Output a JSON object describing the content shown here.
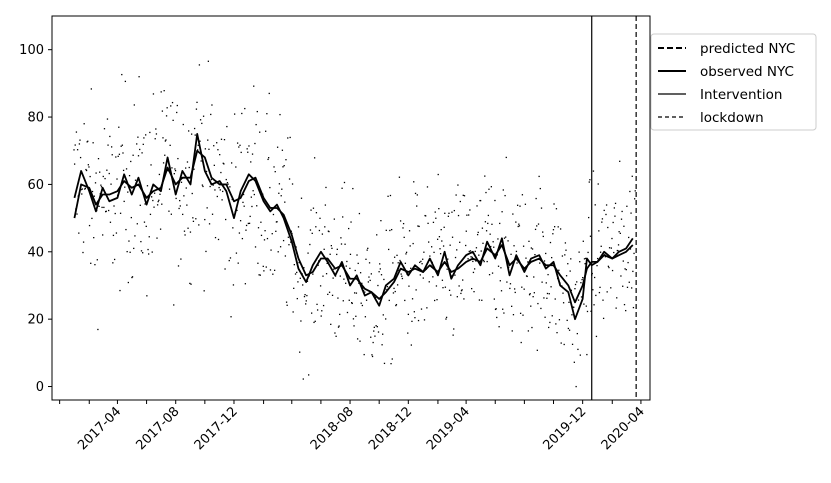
{
  "chart_data": {
    "type": "line",
    "title": "",
    "xlabel": "",
    "ylabel": "",
    "x_range": [
      "2016-11-15",
      "2020-04-20"
    ],
    "ylim": [
      -4,
      110
    ],
    "grid": false,
    "legend_placement": "upper-right-outside",
    "y_ticks": [
      0,
      20,
      40,
      60,
      80,
      100
    ],
    "y_tick_labels": [
      "0",
      "20",
      "40",
      "60",
      "80",
      "100"
    ],
    "x_tick_dates": [
      "2016-12-01",
      "2017-02-01",
      "2017-04-01",
      "2017-06-01",
      "2017-08-01",
      "2017-10-01",
      "2017-12-01",
      "2018-02-01",
      "2018-04-01",
      "2018-06-01",
      "2018-08-01",
      "2018-10-01",
      "2018-12-01",
      "2019-02-01",
      "2019-04-01",
      "2019-06-01",
      "2019-08-01",
      "2019-10-01",
      "2019-12-01",
      "2020-02-01",
      "2020-04-01"
    ],
    "x_tick_labels": [
      "",
      "",
      "2017-04",
      "",
      "2017-08",
      "",
      "2017-12",
      "",
      "",
      "",
      "2018-08",
      "",
      "2018-12",
      "",
      "2019-04",
      "",
      "",
      "",
      "2019-12",
      "",
      "2020-04"
    ],
    "legend": [
      {
        "label": "predicted NYC",
        "style": "dashed-thick"
      },
      {
        "label": "observed NYC",
        "style": "solid-thick"
      },
      {
        "label": "Intervention",
        "style": "solid-thin"
      },
      {
        "label": "lockdown",
        "style": "dashed-thin"
      }
    ],
    "colors": {
      "line": "#000000",
      "scatter": "#000000"
    },
    "series": [
      {
        "name": "observed NYC",
        "x": [
          "2017-01-01",
          "2017-01-15",
          "2017-02-01",
          "2017-02-15",
          "2017-03-01",
          "2017-03-15",
          "2017-04-01",
          "2017-04-15",
          "2017-05-01",
          "2017-05-15",
          "2017-06-01",
          "2017-06-15",
          "2017-07-01",
          "2017-07-15",
          "2017-08-01",
          "2017-08-15",
          "2017-09-01",
          "2017-09-15",
          "2017-10-01",
          "2017-10-15",
          "2017-11-01",
          "2017-11-15",
          "2017-12-01",
          "2017-12-15",
          "2018-01-01",
          "2018-01-15",
          "2018-02-01",
          "2018-02-15",
          "2018-03-01",
          "2018-03-15",
          "2018-04-01",
          "2018-04-15",
          "2018-05-01",
          "2018-05-15",
          "2018-06-01",
          "2018-06-15",
          "2018-07-01",
          "2018-07-15",
          "2018-08-01",
          "2018-08-15",
          "2018-09-01",
          "2018-09-15",
          "2018-10-01",
          "2018-10-15",
          "2018-11-01",
          "2018-11-15",
          "2018-12-01",
          "2018-12-15",
          "2019-01-01",
          "2019-01-15",
          "2019-02-01",
          "2019-02-15",
          "2019-03-01",
          "2019-03-15",
          "2019-04-01",
          "2019-04-15",
          "2019-05-01",
          "2019-05-15",
          "2019-06-01",
          "2019-06-15",
          "2019-07-01",
          "2019-07-15",
          "2019-08-01",
          "2019-08-15",
          "2019-09-01",
          "2019-09-15",
          "2019-10-01",
          "2019-10-15",
          "2019-11-01",
          "2019-11-15",
          "2019-12-01",
          "2019-12-10",
          "2019-12-20",
          "2020-01-01",
          "2020-01-15",
          "2020-02-01",
          "2020-02-15",
          "2020-03-01",
          "2020-03-15"
        ],
        "y": [
          56,
          64,
          58,
          52,
          59,
          55,
          56,
          63,
          57,
          62,
          54,
          60,
          58,
          68,
          57,
          64,
          60,
          75,
          64,
          60,
          61,
          58,
          50,
          58,
          63,
          61,
          55,
          52,
          54,
          50,
          43,
          35,
          31,
          36,
          40,
          37,
          33,
          37,
          30,
          33,
          27,
          28,
          24,
          30,
          32,
          37,
          33,
          36,
          34,
          38,
          33,
          40,
          32,
          36,
          39,
          40,
          36,
          43,
          38,
          44,
          33,
          39,
          34,
          38,
          39,
          35,
          37,
          30,
          28,
          20,
          26,
          38,
          36,
          37,
          40,
          38,
          40,
          41,
          44
        ]
      },
      {
        "name": "predicted NYC",
        "x": [
          "2017-01-01",
          "2017-01-15",
          "2017-02-01",
          "2017-02-15",
          "2017-03-01",
          "2017-03-15",
          "2017-04-01",
          "2017-04-15",
          "2017-05-01",
          "2017-05-15",
          "2017-06-01",
          "2017-06-15",
          "2017-07-01",
          "2017-07-15",
          "2017-08-01",
          "2017-08-15",
          "2017-09-01",
          "2017-09-15",
          "2017-10-01",
          "2017-10-15",
          "2017-11-01",
          "2017-11-15",
          "2017-12-01",
          "2017-12-15",
          "2018-01-01",
          "2018-01-15",
          "2018-02-01",
          "2018-02-15",
          "2018-03-01",
          "2018-03-15",
          "2018-04-01",
          "2018-04-15",
          "2018-05-01",
          "2018-05-15",
          "2018-06-01",
          "2018-06-15",
          "2018-07-01",
          "2018-07-15",
          "2018-08-01",
          "2018-08-15",
          "2018-09-01",
          "2018-09-15",
          "2018-10-01",
          "2018-10-15",
          "2018-11-01",
          "2018-11-15",
          "2018-12-01",
          "2018-12-15",
          "2019-01-01",
          "2019-01-15",
          "2019-02-01",
          "2019-02-15",
          "2019-03-01",
          "2019-03-15",
          "2019-04-01",
          "2019-04-15",
          "2019-05-01",
          "2019-05-15",
          "2019-06-01",
          "2019-06-15",
          "2019-07-01",
          "2019-07-15",
          "2019-08-01",
          "2019-08-15",
          "2019-09-01",
          "2019-09-15",
          "2019-10-01",
          "2019-10-15",
          "2019-11-01",
          "2019-11-15",
          "2019-12-01",
          "2019-12-10",
          "2019-12-20",
          "2020-01-01",
          "2020-01-15",
          "2020-02-01",
          "2020-02-15",
          "2020-03-01",
          "2020-03-15"
        ],
        "y": [
          50,
          60,
          59,
          54,
          57,
          57,
          58,
          61,
          59,
          60,
          56,
          58,
          59,
          65,
          60,
          62,
          62,
          70,
          68,
          62,
          60,
          60,
          55,
          56,
          61,
          62,
          56,
          53,
          53,
          51,
          45,
          38,
          33,
          34,
          38,
          38,
          35,
          36,
          32,
          32,
          29,
          28,
          26,
          28,
          31,
          35,
          34,
          35,
          34,
          36,
          34,
          37,
          34,
          35,
          37,
          38,
          37,
          41,
          39,
          42,
          36,
          38,
          35,
          37,
          38,
          36,
          36,
          33,
          30,
          25,
          30,
          35,
          37,
          37,
          39,
          38,
          39,
          40,
          42
        ]
      }
    ],
    "scatter_y_range": [
      0,
      105
    ],
    "vlines": [
      {
        "label": "Intervention",
        "x": "2019-12-20",
        "style": "solid-thin"
      },
      {
        "label": "lockdown",
        "x": "2020-03-22",
        "style": "dashed-thin"
      }
    ]
  }
}
